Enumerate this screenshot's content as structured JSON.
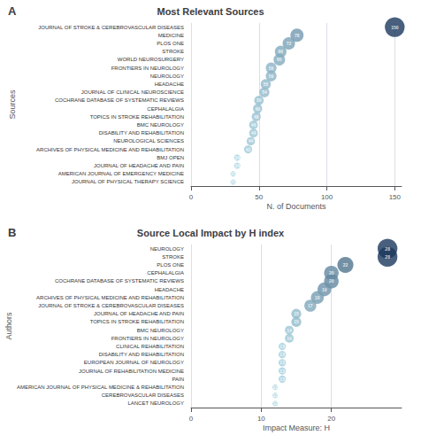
{
  "chart_data": [
    {
      "type": "scatter",
      "title": "Most Relevant Sources",
      "annotations": [
        "A"
      ],
      "xlabel": "N. of Documents",
      "ylabel": "Sources",
      "categories": [
        "JOURNAL OF STROKE & CEREBROVASCULAR DISEASES",
        "MEDICINE",
        "PLOS ONE",
        "STROKE",
        "WORLD NEUROSURGERY",
        "FRONTIERS IN NEUROLOGY",
        "NEUROLOGY",
        "HEADACHE",
        "JOURNAL OF CLINICAL NEUROSCIENCE",
        "COCHRANE DATABASE OF SYSTEMATIC REVIEWS",
        "CEPHALALGIA",
        "TOPICS IN STROKE REHABILITATION",
        "BMC NEUROLOGY",
        "DISABILITY AND REHABILITATION",
        "NEUROLOGICAL SCIENCES",
        "ARCHIVES OF PHYSICAL MEDICINE AND REHABILITATION",
        "BMJ OPEN",
        "JOURNAL OF HEADACHE AND PAIN",
        "AMERICAN JOURNAL OF EMERGENCY MEDICINE",
        "JOURNAL OF PHYSICAL THERAPY SCIENCE"
      ],
      "values": [
        150,
        78,
        72,
        66,
        65,
        59,
        59,
        55,
        54,
        50,
        49,
        48,
        46,
        46,
        44,
        42,
        34,
        34,
        31,
        31
      ],
      "colors": [
        "#1a385c",
        "#7399af",
        "#7aa1b6",
        "#82aabd",
        "#83abbe",
        "#8bb3c5",
        "#8bb3c5",
        "#90b8ca",
        "#91bacb",
        "#96bfd0",
        "#97c0d1",
        "#98c2d2",
        "#9bc5d4",
        "#9bc5d4",
        "#9dc7d6",
        "#a0cad9",
        "#aad5e2",
        "#aad5e2",
        "#add9e6",
        "#add9e6"
      ],
      "xlim": [
        0,
        155
      ],
      "xticks": [
        0,
        50,
        100,
        150
      ],
      "grid": true,
      "data_labels": true
    },
    {
      "type": "scatter",
      "title": "Source Local Impact by H index",
      "annotations": [
        "B"
      ],
      "xlabel": "Impact Measure: H",
      "ylabel": "Authors",
      "categories": [
        "NEUROLOGY",
        "STROKE",
        "PLOS ONE",
        "CEPHALALGIA",
        "COCHRANE DATABASE OF SYSTEMATIC REVIEWS",
        "HEADACHE",
        "ARCHIVES OF PHYSICAL MEDICINE AND REHABILITATION",
        "JOURNAL OF STROKE & CEREBROVASCULAR DISEASES",
        "JOURNAL OF HEADACHE AND PAIN",
        "TOPICS IN STROKE REHABILITATION",
        "BMC NEUROLOGY",
        "FRONTIERS IN NEUROLOGY",
        "CLINICAL REHABILITATION",
        "DISABILITY AND REHABILITATION",
        "EUROPEAN JOURNAL OF NEUROLOGY",
        "JOURNAL OF REHABILITATION MEDICINE",
        "PAIN",
        "AMERICAN JOURNAL OF PHYSICAL MEDICINE & REHABILITATION",
        "CEREBROVASCULAR DISEASES",
        "LANCET NEUROLOGY"
      ],
      "values": [
        28,
        28,
        22,
        20,
        20,
        19,
        18,
        17,
        15,
        15,
        14,
        14,
        13,
        13,
        13,
        13,
        13,
        12,
        12,
        12
      ],
      "colors": [
        "#1a385c",
        "#1a385c",
        "#51748f",
        "#6388a1",
        "#6388a1",
        "#6d92a9",
        "#769db2",
        "#7fa7ba",
        "#92bbcc",
        "#92bbcc",
        "#9bc5d4",
        "#9bc5d4",
        "#a4cfdd",
        "#a4cfdd",
        "#a4cfdd",
        "#a4cfdd",
        "#a4cfdd",
        "#add9e6",
        "#add9e6",
        "#add9e6"
      ],
      "xlim": [
        0,
        30
      ],
      "xticks": [
        0,
        10,
        20
      ],
      "grid": true,
      "data_labels": true
    }
  ]
}
